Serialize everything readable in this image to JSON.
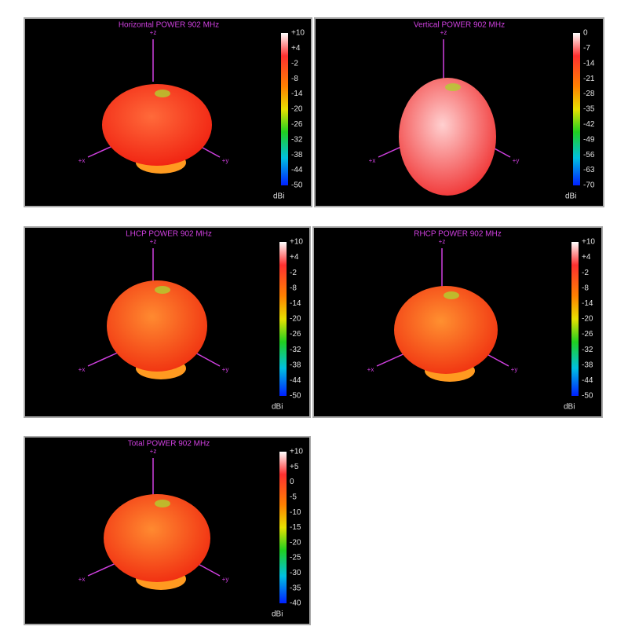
{
  "panels": [
    {
      "title": "Horizontal POWER 902  MHz",
      "axes": {
        "z": "+z",
        "x": "+x",
        "y": "+y"
      },
      "colorbar": {
        "ticks": [
          "+10",
          "+4",
          "-2",
          "-8",
          "-14",
          "-20",
          "-26",
          "-32",
          "-38",
          "-44",
          "-50"
        ],
        "unit": "dBi"
      }
    },
    {
      "title": "Vertical POWER 902  MHz",
      "axes": {
        "z": "+z",
        "x": "+x",
        "y": "+y"
      },
      "colorbar": {
        "ticks": [
          "0",
          "-7",
          "-14",
          "-21",
          "-28",
          "-35",
          "-42",
          "-49",
          "-56",
          "-63",
          "-70"
        ],
        "unit": "dBi"
      }
    },
    {
      "title": "LHCP POWER 902  MHz",
      "axes": {
        "z": "+z",
        "x": "+x",
        "y": "+y"
      },
      "colorbar": {
        "ticks": [
          "+10",
          "+4",
          "-2",
          "-8",
          "-14",
          "-20",
          "-26",
          "-32",
          "-38",
          "-44",
          "-50"
        ],
        "unit": "dBi"
      }
    },
    {
      "title": "RHCP POWER 902  MHz",
      "axes": {
        "z": "+z",
        "x": "+x",
        "y": "+y"
      },
      "colorbar": {
        "ticks": [
          "+10",
          "+4",
          "-2",
          "-8",
          "-14",
          "-20",
          "-26",
          "-32",
          "-38",
          "-44",
          "-50"
        ],
        "unit": "dBi"
      }
    },
    {
      "title": "Total POWER 902  MHz",
      "axes": {
        "z": "+z",
        "x": "+x",
        "y": "+y"
      },
      "colorbar": {
        "ticks": [
          "+10",
          "+5",
          "0",
          "-5",
          "-10",
          "-15",
          "-20",
          "-25",
          "-30",
          "-35",
          "-40"
        ],
        "unit": "dBi"
      }
    }
  ]
}
